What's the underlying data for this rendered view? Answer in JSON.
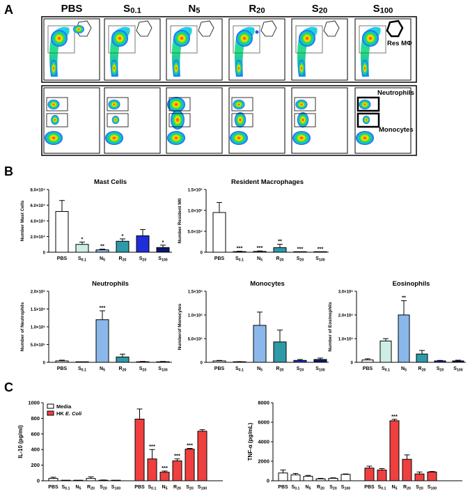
{
  "panel_letters": {
    "a": "A",
    "b": "B",
    "c": "C"
  },
  "flow": {
    "conditions": [
      "PBS",
      "S0.1",
      "N5",
      "R20",
      "S20",
      "S100"
    ],
    "gate_labels": {
      "res": "Res MΦ",
      "neutrophils": "Neutrophils",
      "monocytes": "Monocytes"
    },
    "row1_res_gate_populated": [
      true,
      false,
      false,
      true,
      false,
      false
    ],
    "row2_populations": [
      {
        "neu": 0.5,
        "mid": 0.3,
        "mono": 1.0
      },
      {
        "neu": 0.5,
        "mid": 0.2,
        "mono": 1.0
      },
      {
        "neu": 1.0,
        "mid": 1.0,
        "mono": 1.0
      },
      {
        "neu": 0.5,
        "mid": 0.7,
        "mono": 1.0
      },
      {
        "neu": 0.5,
        "mid": 0.7,
        "mono": 1.0
      },
      {
        "neu": 0.5,
        "mid": 0.2,
        "mono": 1.0
      }
    ]
  },
  "chart_data": [
    {
      "type": "bar",
      "title": "Mast Cells",
      "ylabel": "Number Mast Cells",
      "categories": [
        "PBS",
        "S0.1",
        "N5",
        "R20",
        "S20",
        "S100"
      ],
      "values": [
        52000,
        10000,
        3000,
        14000,
        21000,
        6000
      ],
      "errors": [
        14000,
        3000,
        1000,
        3000,
        8000,
        3000
      ],
      "significance": [
        "",
        "*",
        "**",
        "*",
        "",
        "*"
      ],
      "ylim": [
        0,
        80000
      ],
      "yticks": [
        0,
        20000,
        40000,
        60000,
        80000
      ],
      "ytick_labels": [
        "0",
        "2.0×10⁴",
        "4.0×10⁴",
        "6.0×10⁴",
        "8.0×10⁴"
      ],
      "colors": [
        "#ffffff",
        "#cdeee6",
        "#8ab8ea",
        "#2e9aa8",
        "#1f2ed8",
        "#0c1870"
      ]
    },
    {
      "type": "bar",
      "title": "Resident Macrophages",
      "ylabel": "Number Resident M0",
      "categories": [
        "PBS",
        "S0.1",
        "N5",
        "R20",
        "S20",
        "S100"
      ],
      "values": [
        95000,
        1500,
        2000,
        11000,
        500,
        500
      ],
      "errors": [
        24000,
        1000,
        1000,
        8000,
        300,
        300
      ],
      "significance": [
        "",
        "***",
        "***",
        "**",
        "***",
        "***"
      ],
      "ylim": [
        0,
        150000
      ],
      "yticks": [
        0,
        50000,
        100000,
        150000
      ],
      "ytick_labels": [
        "0",
        "5.0×10⁴",
        "1.0×10⁵",
        "1.5×10⁵"
      ],
      "colors": [
        "#ffffff",
        "#cdeee6",
        "#8ab8ea",
        "#2e9aa8",
        "#1f2ed8",
        "#0c1870"
      ]
    },
    {
      "type": "bar",
      "title": "Neutrophils",
      "ylabel": "Number of Neutrophils",
      "categories": [
        "PBS",
        "S0.1",
        "N5",
        "R20",
        "S20",
        "S100"
      ],
      "values": [
        40000,
        5000,
        1200000,
        150000,
        15000,
        15000
      ],
      "errors": [
        20000,
        3000,
        250000,
        80000,
        10000,
        10000
      ],
      "significance": [
        "",
        "",
        "***",
        "",
        "",
        ""
      ],
      "ylim": [
        0,
        2000000
      ],
      "yticks": [
        0,
        500000,
        1000000,
        1500000,
        2000000
      ],
      "ytick_labels": [
        "0",
        "5.0×10⁵",
        "1.0×10⁶",
        "1.5×10⁶",
        "2.0×10⁶"
      ],
      "colors": [
        "#ffffff",
        "#cdeee6",
        "#8ab8ea",
        "#2e9aa8",
        "#1f2ed8",
        "#0c1870"
      ]
    },
    {
      "type": "bar",
      "title": "Monocytes",
      "ylabel": "Numberof Monocytes",
      "categories": [
        "PBS",
        "S0.1",
        "N5",
        "R20",
        "S20",
        "S100"
      ],
      "values": [
        30000,
        10000,
        780000,
        430000,
        40000,
        60000
      ],
      "errors": [
        10000,
        5000,
        280000,
        250000,
        20000,
        30000
      ],
      "significance": [
        "",
        "",
        "",
        "",
        "",
        ""
      ],
      "ylim": [
        0,
        1500000
      ],
      "yticks": [
        0,
        500000,
        1000000,
        1500000
      ],
      "ytick_labels": [
        "0",
        "5.0×10⁵",
        "1.0×10⁶",
        "1.5×10⁶"
      ],
      "colors": [
        "#ffffff",
        "#cdeee6",
        "#8ab8ea",
        "#2e9aa8",
        "#1f2ed8",
        "#0c1870"
      ]
    },
    {
      "type": "bar",
      "title": "Eosinophils",
      "ylabel": "Number of Eosinophils",
      "categories": [
        "PBS",
        "S0.1",
        "N5",
        "R20",
        "S20",
        "S100"
      ],
      "values": [
        100000,
        900000,
        2000000,
        350000,
        60000,
        60000
      ],
      "errors": [
        50000,
        100000,
        600000,
        150000,
        20000,
        30000
      ],
      "significance": [
        "",
        "",
        "**",
        "",
        "",
        ""
      ],
      "ylim": [
        0,
        3000000
      ],
      "yticks": [
        0,
        1000000,
        2000000,
        3000000
      ],
      "ytick_labels": [
        "0",
        "1.0×10⁶",
        "2.0×10⁶",
        "3.0×10⁶"
      ],
      "colors": [
        "#ffffff",
        "#cdeee6",
        "#8ab8ea",
        "#2e9aa8",
        "#1f2ed8",
        "#0c1870"
      ]
    },
    {
      "type": "bar",
      "ylabel": "IL-10 (pg/ml)",
      "categories": [
        "PBS",
        "S0.1",
        "N5",
        "R20",
        "S20",
        "S100"
      ],
      "series": [
        {
          "name": "Media",
          "values": [
            30,
            0,
            0,
            30,
            5,
            0
          ],
          "errors": [
            15,
            0,
            0,
            20,
            5,
            0
          ],
          "color": "#ffffff"
        },
        {
          "name": "HK E. Coli",
          "values": [
            790,
            280,
            110,
            255,
            405,
            635
          ],
          "errors": [
            130,
            120,
            15,
            25,
            10,
            20
          ],
          "color": "#ef3f3f",
          "significance": [
            "",
            "***",
            "***",
            "***",
            "***",
            ""
          ]
        }
      ],
      "ylim": [
        0,
        1000
      ],
      "yticks": [
        0,
        200,
        400,
        600,
        800,
        1000
      ],
      "ytick_labels": [
        "0",
        "200",
        "400",
        "600",
        "800",
        "1000"
      ],
      "legend_position": "top-left"
    },
    {
      "type": "bar",
      "ylabel": "TNF-α (pg/mL)",
      "categories": [
        "PBS",
        "S0.1",
        "N5",
        "R20",
        "S20",
        "S100"
      ],
      "series": [
        {
          "name": "Media",
          "values": [
            800,
            600,
            450,
            200,
            250,
            650
          ],
          "errors": [
            300,
            150,
            100,
            50,
            50,
            50
          ],
          "color": "#ffffff"
        },
        {
          "name": "HK E. Coli",
          "values": [
            1300,
            1100,
            6150,
            2200,
            700,
            900
          ],
          "errors": [
            200,
            150,
            150,
            450,
            200,
            50
          ],
          "color": "#ef3f3f",
          "significance": [
            "",
            "",
            "***",
            "",
            "",
            ""
          ]
        }
      ],
      "ylim": [
        0,
        8000
      ],
      "yticks": [
        0,
        2000,
        4000,
        6000,
        8000
      ],
      "ytick_labels": [
        "0",
        "2000",
        "4000",
        "6000",
        "8000"
      ]
    }
  ]
}
